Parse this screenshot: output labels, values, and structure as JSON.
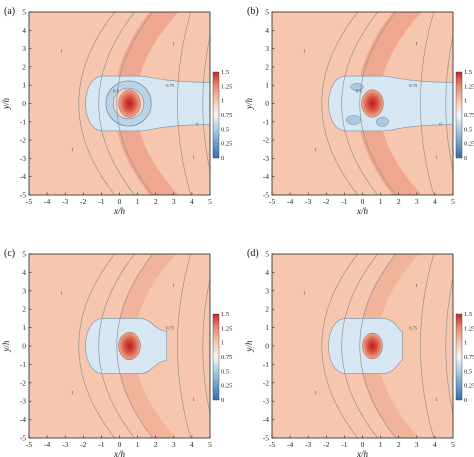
{
  "figure": {
    "panels": [
      {
        "label": "(a)",
        "xlabel": "x/h",
        "ylabel": "y/h"
      },
      {
        "label": "(b)",
        "xlabel": "x/h",
        "ylabel": "y/h"
      },
      {
        "label": "(c)",
        "xlabel": "x/h",
        "ylabel": "y/h"
      },
      {
        "label": "(d)",
        "xlabel": "x/h",
        "ylabel": "y/h"
      }
    ],
    "ticks": [
      "-5",
      "-4",
      "-3",
      "-2",
      "-1",
      "0",
      "1",
      "2",
      "3",
      "4",
      "5"
    ],
    "colorbar_ticks": [
      "1.5",
      "1.25",
      "1",
      "0.75",
      "0.5",
      "0.25",
      "0"
    ],
    "contour_labels": {
      "one": "1",
      "wake": "0.75",
      "ring": "0.5",
      "zero": "0"
    },
    "colors": {
      "low": "#2f6fb0",
      "mid": "#f5f5f5",
      "high": "#c3282c",
      "field": "#f6c7ae",
      "wake": "#d6e6f2"
    }
  },
  "chart_data": [
    {
      "type": "heatmap",
      "title": "(a)",
      "xlabel": "x/h",
      "ylabel": "y/h",
      "xlim": [
        -5,
        5
      ],
      "ylim": [
        -5,
        5
      ],
      "colorbar": [
        0,
        1.5
      ],
      "contour_levels": [
        0,
        0.5,
        0.75,
        1
      ]
    },
    {
      "type": "heatmap",
      "title": "(b)",
      "xlabel": "x/h",
      "ylabel": "y/h",
      "xlim": [
        -5,
        5
      ],
      "ylim": [
        -5,
        5
      ],
      "colorbar": [
        0,
        1.5
      ],
      "contour_levels": [
        0,
        0.5,
        0.75,
        1
      ]
    },
    {
      "type": "heatmap",
      "title": "(c)",
      "xlabel": "x/h",
      "ylabel": "y/h",
      "xlim": [
        -5,
        5
      ],
      "ylim": [
        -5,
        5
      ],
      "colorbar": [
        0,
        1.5
      ],
      "contour_levels": [
        0.75,
        1
      ]
    },
    {
      "type": "heatmap",
      "title": "(d)",
      "xlabel": "x/h",
      "ylabel": "y/h",
      "xlim": [
        -5,
        5
      ],
      "ylim": [
        -5,
        5
      ],
      "colorbar": [
        0,
        1.5
      ],
      "contour_levels": [
        0.75,
        1
      ]
    }
  ]
}
